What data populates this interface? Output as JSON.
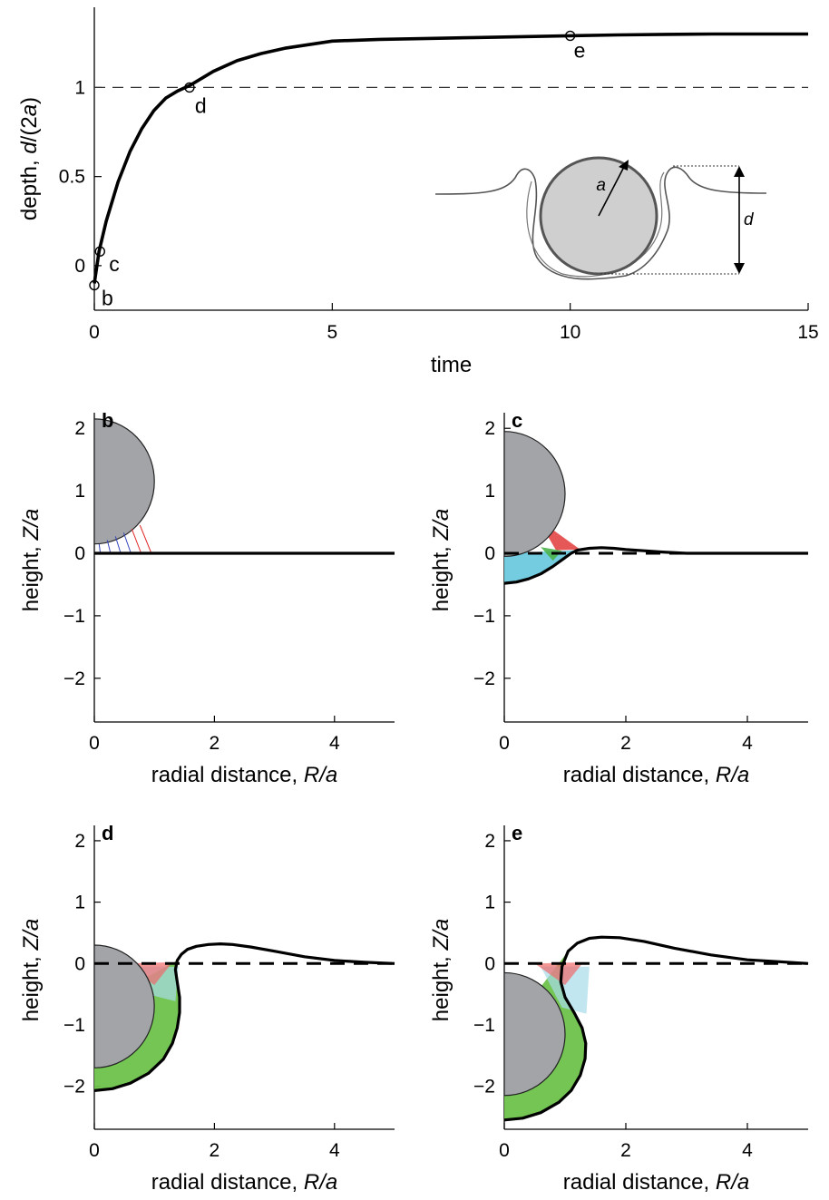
{
  "chart_data": [
    {
      "id": "a",
      "type": "line",
      "panel_letter": "",
      "xlabel": "time",
      "ylabel_prefix": "depth, ",
      "ylabel_var": "d",
      "ylabel_suffix": "/(2",
      "ylabel_var2": "a",
      "ylabel_close": ")",
      "xlim": [
        0,
        15
      ],
      "ylim": [
        -0.25,
        1.45
      ],
      "xticks": [
        "0",
        "5",
        "10",
        "15"
      ],
      "xtick_values": [
        0,
        5,
        10,
        15
      ],
      "yticks": [
        "0",
        "0.5",
        "1"
      ],
      "ytick_values": [
        0,
        0.5,
        1
      ],
      "reference_line": {
        "y": 1.0,
        "style": "dashed"
      },
      "series": [
        {
          "x": [
            0,
            0.1,
            0.25,
            0.5,
            0.75,
            1.0,
            1.25,
            1.5,
            1.75,
            2.0,
            2.5,
            3.0,
            3.5,
            4.0,
            5.0,
            6.0,
            7.0,
            8.0,
            9.0,
            10.0,
            11.0,
            12.0,
            13.0,
            14.0,
            15.0
          ],
          "y": [
            -0.1,
            0.08,
            0.25,
            0.47,
            0.64,
            0.77,
            0.87,
            0.94,
            0.98,
            1.01,
            1.09,
            1.15,
            1.19,
            1.22,
            1.26,
            1.27,
            1.275,
            1.28,
            1.285,
            1.29,
            1.295,
            1.298,
            1.3,
            1.3,
            1.3
          ]
        }
      ],
      "markers": [
        {
          "label": "b",
          "x": 0.0,
          "y": -0.11
        },
        {
          "label": "c",
          "x": 0.12,
          "y": 0.08
        },
        {
          "label": "d",
          "x": 2.0,
          "y": 1.0
        },
        {
          "label": "e",
          "x": 10.0,
          "y": 1.29
        }
      ],
      "inset": {
        "radius_label": "a",
        "depth_label": "d"
      }
    },
    {
      "id": "b",
      "type": "line",
      "panel_letter": "b",
      "xlabel_prefix": "radial distance, ",
      "xlabel_var": "R/a",
      "ylabel_prefix": "height, ",
      "ylabel_var": "Z/a",
      "xlim": [
        0,
        5
      ],
      "ylim": [
        -2.7,
        2.25
      ],
      "xticks": [
        "0",
        "2",
        "4"
      ],
      "xtick_values": [
        0,
        2,
        4
      ],
      "yticks": [
        "−2",
        "−1",
        "0",
        "1",
        "2"
      ],
      "ytick_values": [
        -2,
        -1,
        0,
        1,
        2
      ],
      "sphere": {
        "center_z": 1.15,
        "radius": 1.0
      },
      "interface": {
        "R": [
          0,
          0.5,
          1.0,
          1.5,
          2.0,
          3.0,
          4.0,
          5.0
        ],
        "Z": [
          0,
          0,
          0,
          0,
          0,
          0,
          0,
          0
        ]
      },
      "show_zero_dashed": false,
      "fill_contact": [],
      "fill_wetted": []
    },
    {
      "id": "c",
      "type": "line",
      "panel_letter": "c",
      "xlabel_prefix": "radial distance, ",
      "xlabel_var": "R/a",
      "ylabel_prefix": "height, ",
      "ylabel_var": "Z/a",
      "xlim": [
        0,
        5
      ],
      "ylim": [
        -2.7,
        2.25
      ],
      "xticks": [
        "0",
        "2",
        "4"
      ],
      "xtick_values": [
        0,
        2,
        4
      ],
      "yticks": [
        "−2",
        "−1",
        "0",
        "1",
        "2"
      ],
      "ytick_values": [
        -2,
        -1,
        0,
        1,
        2
      ],
      "sphere": {
        "center_z": 0.95,
        "radius": 1.0
      },
      "interface": {
        "R": [
          0,
          0.2,
          0.4,
          0.6,
          0.8,
          1.0,
          1.1,
          1.2,
          1.4,
          1.6,
          1.8,
          2.0,
          2.3,
          2.6,
          3.0,
          4.0,
          5.0
        ],
        "Z": [
          -0.48,
          -0.46,
          -0.41,
          -0.33,
          -0.21,
          -0.07,
          0.0,
          0.05,
          0.08,
          0.09,
          0.08,
          0.06,
          0.04,
          0.02,
          0.0,
          0.0,
          0.0
        ]
      },
      "show_zero_dashed": true,
      "fill_contact": [],
      "fill_wetted": []
    },
    {
      "id": "d",
      "type": "line",
      "panel_letter": "d",
      "xlabel_prefix": "radial distance, ",
      "xlabel_var": "R/a",
      "ylabel_prefix": "height, ",
      "ylabel_var": "Z/a",
      "xlim": [
        0,
        5
      ],
      "ylim": [
        -2.7,
        2.25
      ],
      "xticks": [
        "0",
        "2",
        "4"
      ],
      "xtick_values": [
        0,
        2,
        4
      ],
      "yticks": [
        "−2",
        "−1",
        "0",
        "1",
        "2"
      ],
      "ytick_values": [
        -2,
        -1,
        0,
        1,
        2
      ],
      "sphere": {
        "center_z": -0.7,
        "radius": 1.0
      },
      "interface": {
        "R": [
          0,
          0.3,
          0.6,
          0.9,
          1.15,
          1.3,
          1.38,
          1.42,
          1.42,
          1.38,
          1.35,
          1.38,
          1.45,
          1.55,
          1.7,
          1.9,
          2.1,
          2.3,
          2.6,
          3.0,
          3.5,
          4.0,
          4.5,
          5.0
        ],
        "Z": [
          -2.07,
          -2.04,
          -1.95,
          -1.79,
          -1.56,
          -1.3,
          -1.05,
          -0.8,
          -0.55,
          -0.3,
          -0.1,
          0.05,
          0.15,
          0.23,
          0.28,
          0.31,
          0.32,
          0.31,
          0.27,
          0.2,
          0.11,
          0.05,
          0.02,
          0.0
        ]
      },
      "show_zero_dashed": true,
      "fill_contact": [],
      "fill_wetted": []
    },
    {
      "id": "e",
      "type": "line",
      "panel_letter": "e",
      "xlabel_prefix": "radial distance, ",
      "xlabel_var": "R/a",
      "ylabel_prefix": "height, ",
      "ylabel_var": "Z/a",
      "xlim": [
        0,
        5
      ],
      "ylim": [
        -2.7,
        2.25
      ],
      "xticks": [
        "0",
        "2",
        "4"
      ],
      "xtick_values": [
        0,
        2,
        4
      ],
      "yticks": [
        "−2",
        "−1",
        "0",
        "1",
        "2"
      ],
      "ytick_values": [
        -2,
        -1,
        0,
        1,
        2
      ],
      "sphere": {
        "center_z": -1.15,
        "radius": 1.0
      },
      "interface": {
        "R": [
          0,
          0.3,
          0.6,
          0.9,
          1.1,
          1.25,
          1.33,
          1.34,
          1.28,
          1.15,
          1.0,
          0.93,
          0.95,
          1.05,
          1.2,
          1.4,
          1.6,
          1.9,
          2.3,
          2.8,
          3.4,
          4.0,
          4.5,
          5.0
        ],
        "Z": [
          -2.55,
          -2.52,
          -2.43,
          -2.26,
          -2.07,
          -1.82,
          -1.55,
          -1.3,
          -1.05,
          -0.8,
          -0.55,
          -0.3,
          -0.05,
          0.2,
          0.33,
          0.41,
          0.43,
          0.42,
          0.36,
          0.25,
          0.14,
          0.06,
          0.03,
          0.0
        ]
      },
      "show_zero_dashed": true,
      "fill_contact": [],
      "fill_wetted": []
    }
  ]
}
